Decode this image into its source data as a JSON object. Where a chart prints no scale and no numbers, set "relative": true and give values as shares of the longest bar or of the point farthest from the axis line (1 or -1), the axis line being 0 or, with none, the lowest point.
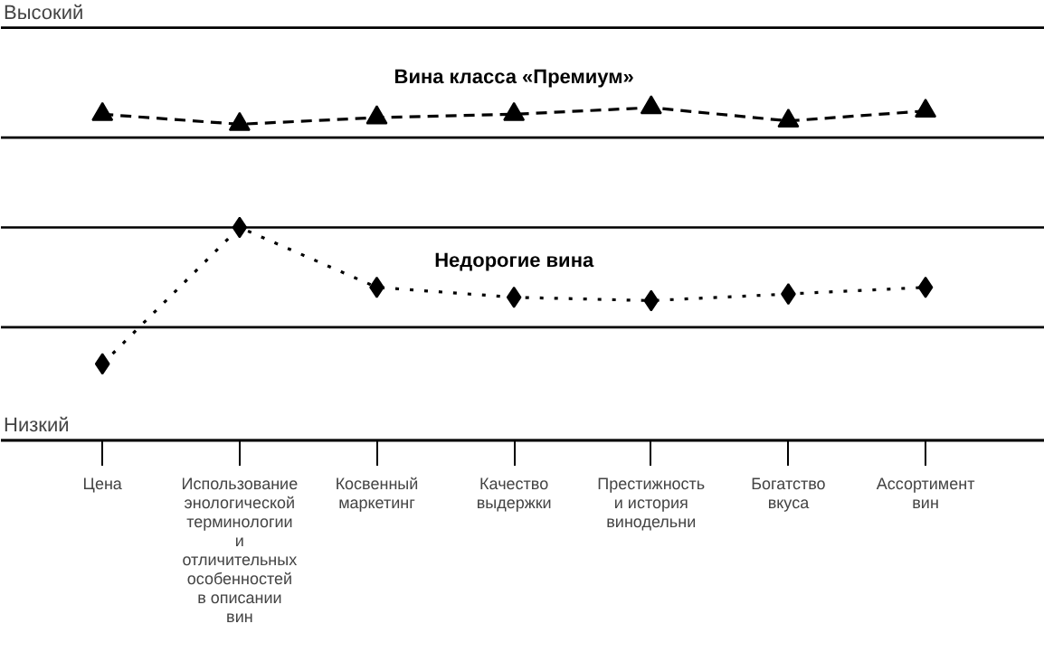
{
  "chart_data": {
    "type": "line",
    "relative": true,
    "grid": false,
    "categories": [
      "Цена",
      "Использование энологической терминологии и отличительных особенностей в описании вин",
      "Косвенный маркетинг",
      "Качество выдержки",
      "Престижность и история винодельни",
      "Богатство вкуса",
      "Ассортимент вин"
    ],
    "series": [
      {
        "name": "Вина класса «Премиум»",
        "color": "#000000",
        "marker": "triangle",
        "line_style": "dashed",
        "values": [
          0.98,
          0.95,
          0.97,
          0.98,
          1,
          0.96,
          0.99
        ]
      },
      {
        "name": "Недорогие вина",
        "color": "#000000",
        "marker": "diamond",
        "line_style": "dotted",
        "values": [
          0.23,
          0.64,
          0.46,
          0.43,
          0.42,
          0.44,
          0.46
        ]
      }
    ],
    "ref_lines": [
      {
        "axis": "y",
        "value": 1.24,
        "label": "Высокий"
      },
      {
        "axis": "y",
        "value": 0.91,
        "label": null
      },
      {
        "axis": "y",
        "value": 0.64,
        "label": null
      },
      {
        "axis": "y",
        "value": 0.34,
        "label": null
      },
      {
        "axis": "y",
        "value": 0,
        "label": "Низкий"
      }
    ]
  }
}
